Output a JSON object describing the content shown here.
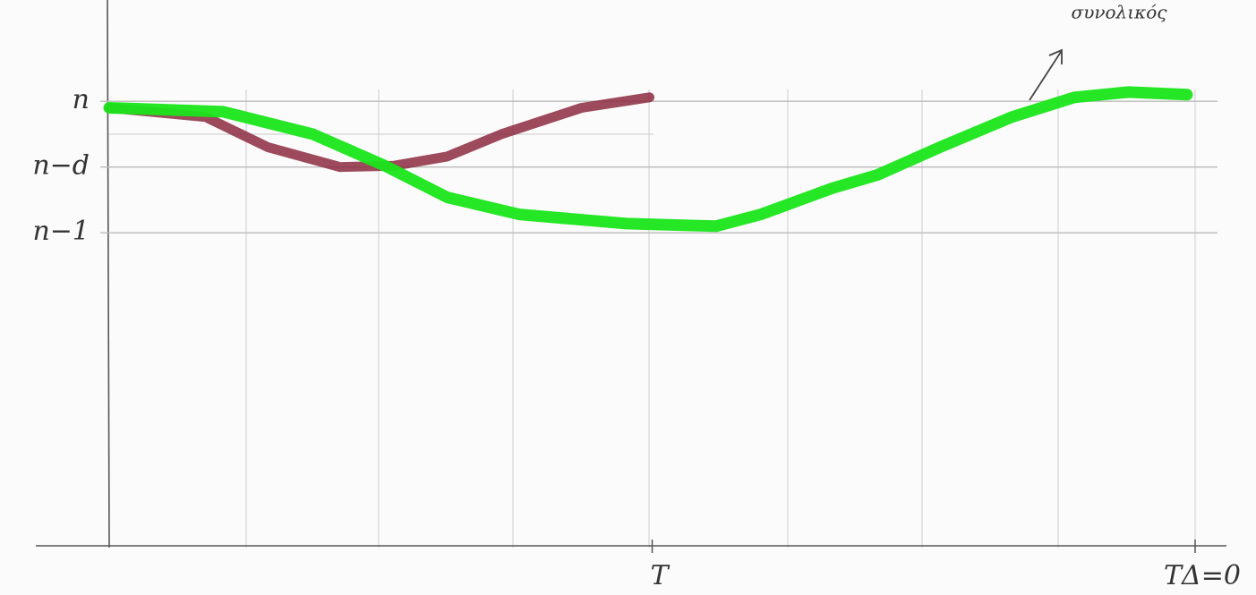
{
  "chart_data": {
    "type": "line",
    "annotation": "συνολικός",
    "xlim": [
      0,
      8
    ],
    "ylim": [
      -2.38,
      1.77
    ],
    "xticks": [
      {
        "value": 4,
        "label": "T"
      },
      {
        "value": 8,
        "label": "TΔ=0"
      }
    ],
    "yticks": [
      {
        "value": 1,
        "label": "n"
      },
      {
        "value": 0.5,
        "label": "n−d"
      },
      {
        "value": 0,
        "label": "n−1"
      }
    ],
    "grid": true,
    "series": [
      {
        "color": "#8b2a40",
        "x": [
          0,
          0.71,
          1.17,
          1.7,
          2.1,
          2.49,
          2.89,
          3.48,
          3.98
        ],
        "values": [
          0.95,
          0.88,
          0.65,
          0.5,
          0.51,
          0.58,
          0.75,
          0.95,
          1.03
        ]
      },
      {
        "color": "#19e619",
        "x": [
          0,
          0.84,
          1.5,
          2.03,
          2.49,
          3.02,
          3.81,
          4.47,
          4.8,
          5.33,
          5.66,
          6.12,
          6.65,
          7.11,
          7.51,
          7.94
        ],
        "values": [
          0.95,
          0.92,
          0.75,
          0.51,
          0.27,
          0.14,
          0.07,
          0.05,
          0.14,
          0.34,
          0.44,
          0.65,
          0.88,
          1.03,
          1.07,
          1.05
        ]
      }
    ]
  }
}
